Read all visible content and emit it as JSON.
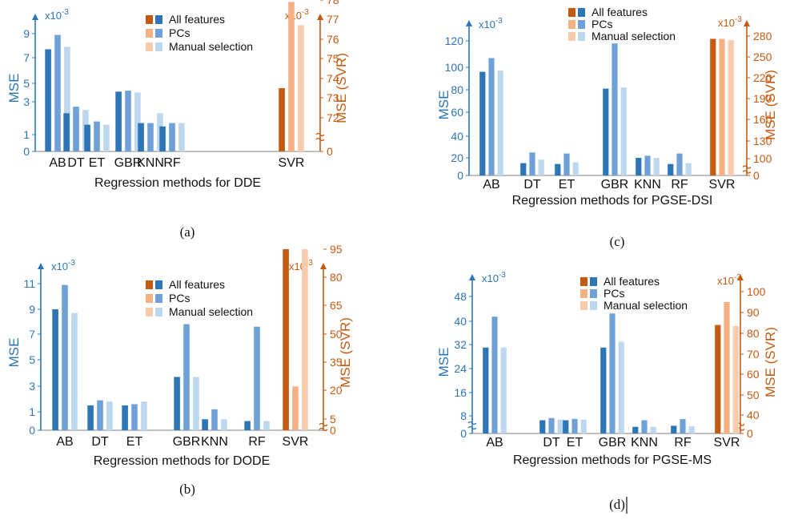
{
  "colors": {
    "left_axis": "#2e75b6",
    "right_axis": "#c55a11",
    "all_features": "#2e75b6",
    "pcs": "#6fa1d8",
    "manual_selection": "#bdd7ee",
    "svr_all_features": "#c55a11",
    "svr_pcs": "#f4b183",
    "svr_manual_selection": "#f8cbad"
  },
  "legend": [
    "All features",
    "PCs",
    "Manual selection"
  ],
  "chart_data": [
    {
      "type": "bar",
      "panel_label": "(a)",
      "xlabel": "Regression methods for DDE",
      "ylabel": "MSE",
      "ylabel_right": "MSE (SVR)",
      "exp_left": "x10",
      "exp_left_sup": "-3",
      "exp_right": "x10",
      "exp_right_sup": "-3",
      "categories": [
        "AB",
        "DT",
        "ET",
        "GBR",
        "KNN",
        "RF",
        "SVR"
      ],
      "left_ticks": [
        "0",
        "1",
        "3",
        "5",
        "7",
        "9"
      ],
      "right_ticks": [
        "0",
        "72",
        "73",
        "74",
        "75",
        "76",
        "77",
        "78"
      ],
      "series": [
        {
          "name": "All features",
          "values": [
            7.7,
            2.3,
            1.6,
            4.1,
            1.7,
            1.5,
            73.5
          ]
        },
        {
          "name": "PCs",
          "values": [
            8.9,
            2.7,
            1.8,
            4.2,
            1.7,
            1.7,
            77.9
          ]
        },
        {
          "name": "Manual selection",
          "values": [
            7.9,
            2.5,
            1.6,
            4.0,
            2.3,
            1.7,
            76.7
          ]
        }
      ]
    },
    {
      "type": "bar",
      "panel_label": "(b)",
      "xlabel": "Regression methods for DODE",
      "ylabel": "MSE",
      "ylabel_right": "MSE (SVR)",
      "exp_left": "x10",
      "exp_left_sup": "-3",
      "exp_right": "x10",
      "exp_right_sup": "-3",
      "categories": [
        "AB",
        "DT",
        "ET",
        "GBR",
        "KNN",
        "RF",
        "SVR"
      ],
      "left_ticks": [
        "0",
        "1",
        "3",
        "5",
        "7",
        "9",
        "11"
      ],
      "right_ticks": [
        "0",
        "5",
        "20",
        "35",
        "50",
        "65",
        "80",
        "95"
      ],
      "series": [
        {
          "name": "All features",
          "values": [
            9.0,
            1.5,
            1.5,
            3.7,
            0.6,
            0.5,
            95
          ]
        },
        {
          "name": "PCs",
          "values": [
            10.9,
            1.9,
            1.6,
            7.8,
            1.2,
            7.6,
            22
          ]
        },
        {
          "name": "Manual selection",
          "values": [
            8.7,
            1.8,
            1.8,
            3.7,
            0.6,
            0.5,
            95
          ]
        }
      ]
    },
    {
      "type": "bar",
      "panel_label": "(c)",
      "xlabel": "Regression methods for PGSE-DSI",
      "ylabel": "MSE",
      "ylabel_right": "MSE (SVR)",
      "exp_left": "x10",
      "exp_left_sup": "-3",
      "exp_right": "x10",
      "exp_right_sup": "-3",
      "categories": [
        "AB",
        "DT",
        "ET",
        "GBR",
        "KNN",
        "RF",
        "SVR"
      ],
      "left_ticks": [
        "0",
        "20",
        "40",
        "60",
        "80",
        "100",
        "120"
      ],
      "right_ticks": [
        "0",
        "100",
        "130",
        "160",
        "190",
        "220",
        "250",
        "280"
      ],
      "series": [
        {
          "name": "All features",
          "values": [
            96,
            14,
            13,
            81,
            20,
            13,
            276
          ]
        },
        {
          "name": "PCs",
          "values": [
            107,
            25,
            24,
            118,
            22,
            24,
            276
          ]
        },
        {
          "name": "Manual selection",
          "values": [
            97,
            18,
            15,
            82,
            20,
            14,
            274
          ]
        }
      ]
    },
    {
      "type": "bar",
      "panel_label": "(d)",
      "xlabel": "Regression methods for PGSE-MS",
      "ylabel": "MSE",
      "ylabel_right": "MSE (SVR)",
      "exp_left": "x10",
      "exp_left_sup": "-3",
      "exp_right": "x10",
      "exp_right_sup": "-3",
      "categories": [
        "AB",
        "DT",
        "ET",
        "GBR",
        "KNN",
        "RF",
        "SVR"
      ],
      "left_ticks": [
        "0",
        "8",
        "16",
        "24",
        "32",
        "40",
        "48"
      ],
      "right_ticks": [
        "0",
        "40",
        "50",
        "60",
        "70",
        "80",
        "90",
        "100"
      ],
      "series": [
        {
          "name": "All features",
          "values": [
            31,
            6,
            6,
            31,
            3,
            3.5,
            84
          ]
        },
        {
          "name": "PCs",
          "values": [
            41.5,
            7,
            6.6,
            42.5,
            6,
            6.5,
            95
          ]
        },
        {
          "name": "Manual selection",
          "values": [
            31,
            6.3,
            6.3,
            33,
            3,
            3.3,
            83.5
          ]
        }
      ]
    }
  ]
}
